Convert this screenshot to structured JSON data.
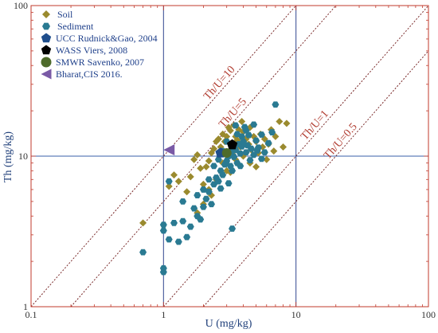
{
  "chart_data": {
    "type": "scatter",
    "xlabel": "U (mg/kg)",
    "ylabel": "Th (mg/kg)",
    "x_scale": "log",
    "y_scale": "log",
    "xlim": [
      0.1,
      100
    ],
    "ylim": [
      1,
      100
    ],
    "x_ticks": [
      "0.1",
      "1",
      "10",
      "100"
    ],
    "y_ticks": [
      "1",
      "10",
      "100"
    ],
    "grid": "major-decade",
    "legend_position": "top-left",
    "reference_lines": [
      {
        "label": "Th/U=10",
        "ratio": 10
      },
      {
        "label": "Th/U=5",
        "ratio": 5
      },
      {
        "label": "Th/U=1",
        "ratio": 1
      },
      {
        "label": "Th/U=0.5",
        "ratio": 0.5
      }
    ],
    "crosshair": {
      "x": 1,
      "y": 10
    },
    "series": [
      {
        "name": "Soil",
        "marker": "diamond",
        "color": "#9a8a2e",
        "points": [
          [
            0.7,
            3.6
          ],
          [
            1.1,
            6.3
          ],
          [
            1.2,
            7.5
          ],
          [
            1.3,
            6.8
          ],
          [
            1.6,
            7.3
          ],
          [
            1.7,
            9.5
          ],
          [
            1.8,
            10.2
          ],
          [
            1.9,
            8.3
          ],
          [
            2.0,
            6.5
          ],
          [
            2.1,
            8.5
          ],
          [
            2.2,
            9.3
          ],
          [
            2.3,
            10.5
          ],
          [
            2.4,
            11.2
          ],
          [
            2.5,
            12.5
          ],
          [
            2.6,
            13.0
          ],
          [
            2.7,
            11.5
          ],
          [
            2.8,
            14.0
          ],
          [
            2.9,
            12.5
          ],
          [
            3.0,
            13.5
          ],
          [
            3.1,
            15.5
          ],
          [
            3.2,
            14.8
          ],
          [
            3.3,
            10.5
          ],
          [
            3.4,
            16.0
          ],
          [
            3.5,
            13.5
          ],
          [
            3.6,
            12.8
          ],
          [
            3.7,
            15.0
          ],
          [
            3.8,
            11.5
          ],
          [
            3.9,
            17.0
          ],
          [
            4.0,
            14.5
          ],
          [
            4.2,
            13.0
          ],
          [
            4.4,
            12.0
          ],
          [
            4.5,
            15.5
          ],
          [
            4.6,
            11.0
          ],
          [
            4.8,
            13.5
          ],
          [
            5.0,
            12.5
          ],
          [
            5.2,
            10.5
          ],
          [
            5.4,
            14.0
          ],
          [
            5.6,
            11.5
          ],
          [
            5.8,
            13.0
          ],
          [
            6.0,
            9.5
          ],
          [
            6.2,
            12.0
          ],
          [
            6.5,
            15.0
          ],
          [
            6.8,
            10.8
          ],
          [
            7.0,
            13.5
          ],
          [
            7.5,
            17.0
          ],
          [
            8.0,
            11.5
          ],
          [
            8.5,
            16.5
          ],
          [
            2.2,
            6.0
          ],
          [
            1.5,
            5.8
          ],
          [
            2.5,
            7.0
          ],
          [
            3.0,
            8.0
          ],
          [
            2.8,
            9.0
          ],
          [
            3.5,
            9.5
          ],
          [
            4.0,
            10.0
          ],
          [
            4.5,
            9.0
          ],
          [
            5.0,
            8.5
          ],
          [
            2.0,
            4.8
          ],
          [
            1.8,
            4.2
          ],
          [
            2.3,
            5.5
          ],
          [
            3.2,
            7.8
          ]
        ]
      },
      {
        "name": "Sediment",
        "marker": "hexagon",
        "color": "#2a7a92",
        "points": [
          [
            0.7,
            2.3
          ],
          [
            1.0,
            1.8
          ],
          [
            1.0,
            1.7
          ],
          [
            1.0,
            3.2
          ],
          [
            1.0,
            3.5
          ],
          [
            1.1,
            2.8
          ],
          [
            1.2,
            3.6
          ],
          [
            1.3,
            2.7
          ],
          [
            1.4,
            3.7
          ],
          [
            1.5,
            2.9
          ],
          [
            1.6,
            3.4
          ],
          [
            1.7,
            4.5
          ],
          [
            1.8,
            4.0
          ],
          [
            1.9,
            3.8
          ],
          [
            2.0,
            4.6
          ],
          [
            2.1,
            5.2
          ],
          [
            2.2,
            5.8
          ],
          [
            2.3,
            4.8
          ],
          [
            2.4,
            6.5
          ],
          [
            2.5,
            7.2
          ],
          [
            2.6,
            6.8
          ],
          [
            2.7,
            8.0
          ],
          [
            2.8,
            7.5
          ],
          [
            2.9,
            8.8
          ],
          [
            3.0,
            9.3
          ],
          [
            3.1,
            10.0
          ],
          [
            3.2,
            8.6
          ],
          [
            3.3,
            10.8
          ],
          [
            3.4,
            9.9
          ],
          [
            3.5,
            11.0
          ],
          [
            3.6,
            9.0
          ],
          [
            3.7,
            12.0
          ],
          [
            3.8,
            10.4
          ],
          [
            3.9,
            11.6
          ],
          [
            4.0,
            12.5
          ],
          [
            4.2,
            10.6
          ],
          [
            4.4,
            13.8
          ],
          [
            4.6,
            11.2
          ],
          [
            4.8,
            10.2
          ],
          [
            5.0,
            12.7
          ],
          [
            5.2,
            11.4
          ],
          [
            5.5,
            13.9
          ],
          [
            5.8,
            10.6
          ],
          [
            6.2,
            12.2
          ],
          [
            6.6,
            14.4
          ],
          [
            7.0,
            22.0
          ],
          [
            3.3,
            3.3
          ],
          [
            1.1,
            6.8
          ],
          [
            1.4,
            5.0
          ],
          [
            2.0,
            6.0
          ],
          [
            2.6,
            9.5
          ],
          [
            3.0,
            12.5
          ],
          [
            3.5,
            16.0
          ],
          [
            4.2,
            14.8
          ],
          [
            4.5,
            9.4
          ],
          [
            5.5,
            9.6
          ],
          [
            2.8,
            10.8
          ],
          [
            3.3,
            8.0
          ],
          [
            2.4,
            8.6
          ],
          [
            3.9,
            13.5
          ],
          [
            4.1,
            15.6
          ],
          [
            3.6,
            14.0
          ],
          [
            4.8,
            16.2
          ],
          [
            1.8,
            5.5
          ],
          [
            2.2,
            7.0
          ],
          [
            3.1,
            6.6
          ],
          [
            2.7,
            6.1
          ],
          [
            3.8,
            8.6
          ],
          [
            4.3,
            11.8
          ],
          [
            5.1,
            10.9
          ]
        ]
      },
      {
        "name": "UCC Rudnick&Gao, 2004",
        "marker": "pentagon",
        "color": "#1f4e8c",
        "points": [
          [
            2.7,
            10.5
          ]
        ]
      },
      {
        "name": "WASS Viers, 2008",
        "marker": "pentagon",
        "color": "#000000",
        "points": [
          [
            3.3,
            11.9
          ]
        ]
      },
      {
        "name": "SMWR Savenko, 2007",
        "marker": "circle",
        "color": "#4e6b2b",
        "points": [
          [
            3.0,
            10.5
          ]
        ]
      },
      {
        "name": "Bharat,CIS 2016.",
        "marker": "triangle-left",
        "color": "#7a5aa6",
        "points": [
          [
            1.1,
            11.0
          ]
        ]
      }
    ]
  }
}
